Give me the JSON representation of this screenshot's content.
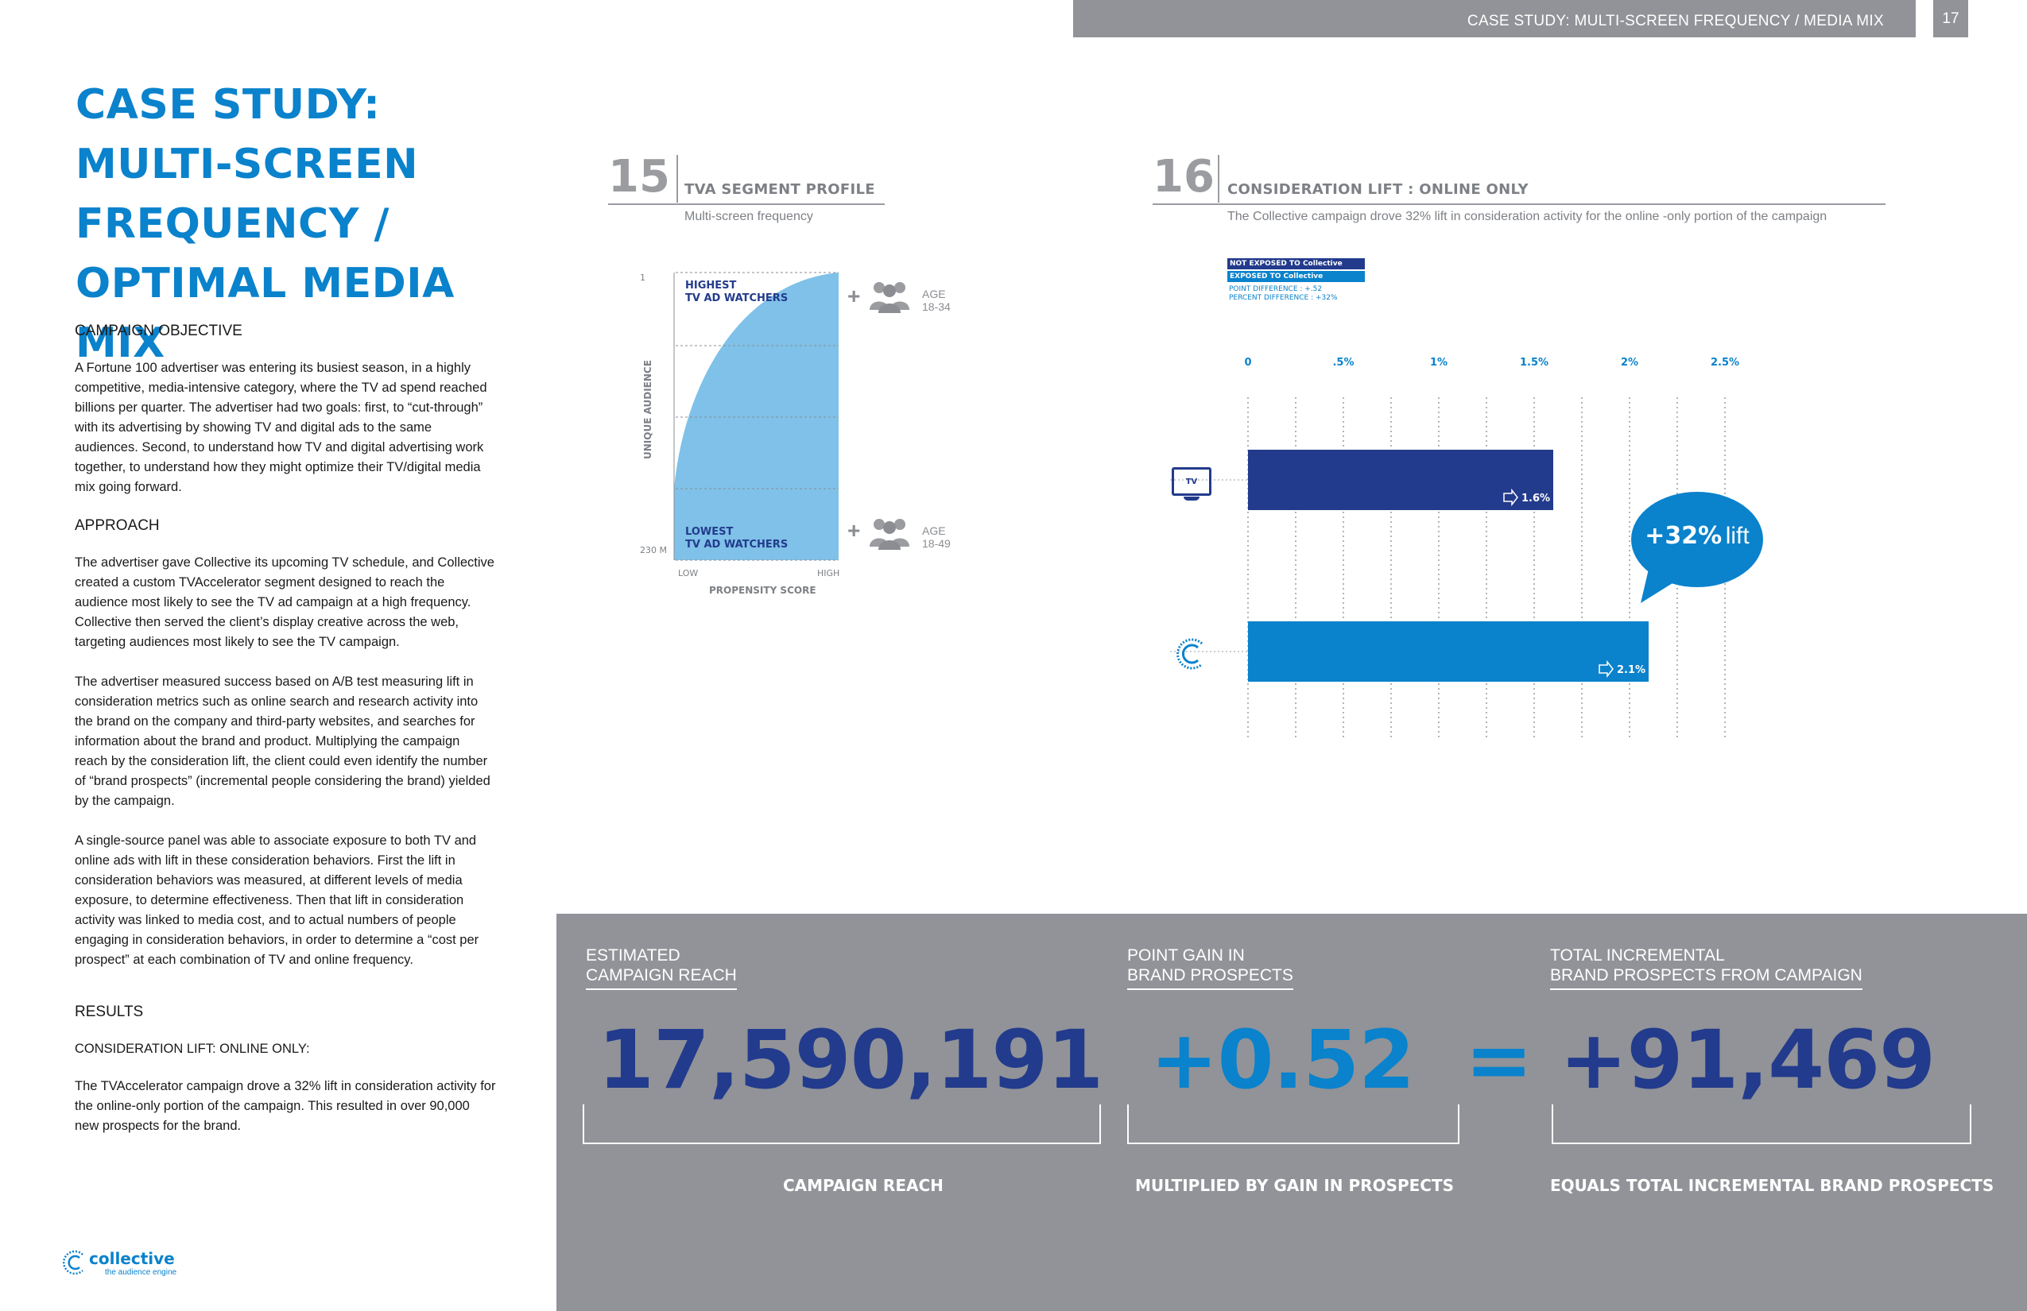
{
  "header": {
    "title": "CASE STUDY: MULTI-SCREEN FREQUENCY / MEDIA MIX",
    "page_number": "17"
  },
  "main_title": {
    "line1": "CASE STUDY:",
    "line2": "MULTI-SCREEN",
    "line3": "FREQUENCY /",
    "line4": "OPTIMAL MEDIA MIX"
  },
  "body": {
    "objective_heading": "CAMPAIGN OBJECTIVE",
    "objective_text": "A Fortune 100 advertiser was entering its busiest season, in a highly competitive, media-intensive category, where the TV ad spend reached billions per quarter. The advertiser had two goals: first, to “cut-through” with its advertising by showing TV and digital ads to the same audiences. Second, to understand how TV and digital advertising work together, to understand how they might optimize their TV/digital media mix going forward.",
    "approach_heading": "APPROACH",
    "approach_p1": "The advertiser gave Collective its upcoming TV schedule, and Collective created a custom TVAccelerator segment designed to reach the audience most likely to see the TV ad campaign at a high frequency. Collective then served the client’s display creative across the web, targeting audiences most likely to see the TV campaign.",
    "approach_p2": "The advertiser measured success based on A/B test measuring lift in consideration metrics such as online search and research activity into the brand on the company and third-party websites, and searches for information about the brand and product. Multiplying the campaign reach by the consideration lift, the client could even identify the number of “brand prospects” (incremental people considering the brand) yielded by the campaign.",
    "approach_p3": "A single-source panel was able to associate exposure to both TV and online ads with lift in these consideration behaviors. First the lift in consideration behaviors was measured, at different levels of media exposure, to determine effectiveness. Then that lift in consideration activity was linked to media cost, and to actual numbers of people engaging in consideration behaviors, in order to determine a “cost per prospect” at each combination of TV and online frequency.",
    "results_heading": "RESULTS",
    "results_subheading": "CONSIDERATION LIFT: ONLINE ONLY:",
    "results_text": "The TVAccelerator campaign drove a 32% lift in consideration activity for the online-only portion of the campaign.  This resulted in over 90,000 new prospects for the brand."
  },
  "chart15": {
    "number": "15",
    "title": "TVA SEGMENT PROFILE",
    "subtitle": "Multi-screen frequency",
    "y_axis_label": "UNIQUE AUDIENCE",
    "y_top": "1",
    "y_bottom": "230 M",
    "x_axis_label": "PROPENSITY SCORE",
    "x_low": "LOW",
    "x_high": "HIGH",
    "top_label_line1": "HIGHEST",
    "top_label_line2": "TV AD WATCHERS",
    "bottom_label_line1": "LOWEST",
    "bottom_label_line2": "TV AD WATCHERS",
    "age_top_line1": "AGE",
    "age_top_line2": "18-34",
    "age_bottom_line1": "AGE",
    "age_bottom_line2": "18-49",
    "fill_color": "#7fc1e8",
    "plus": "+"
  },
  "chart16": {
    "number": "16",
    "title": "CONSIDERATION LIFT : ONLINE ONLY",
    "subtitle": "The Collective campaign drove 32% lift in consideration activity for the online -only portion of the campaign",
    "legend": {
      "not_exposed": "NOT EXPOSED TO Collective",
      "exposed": "EXPOSED TO Collective",
      "point_diff": "POINT DIFFERENCE : +.52",
      "percent_diff": "PERCENT DIFFERENCE : +32%"
    },
    "tv_icon_label": "TV",
    "callout_value": "+32%",
    "callout_word": "lift",
    "colors": {
      "not_exposed": "#233b8c",
      "exposed": "#0a82cc"
    }
  },
  "chart_data": {
    "type": "bar",
    "orientation": "horizontal",
    "categories": [
      "TV",
      "Collective"
    ],
    "values": [
      1.6,
      2.1
    ],
    "value_labels": [
      "1.6%",
      "2.1%"
    ],
    "x_ticks": [
      "0",
      ".5%",
      "1%",
      "1.5%",
      "2%",
      "2.5%"
    ],
    "xlim": [
      0,
      2.5
    ]
  },
  "stats": {
    "reach_label_line1": "ESTIMATED",
    "reach_label_line2": "CAMPAIGN REACH",
    "reach_value": "17,590,191",
    "reach_footer": "CAMPAIGN REACH",
    "gain_label_line1": "POINT GAIN IN",
    "gain_label_line2": "BRAND PROSPECTS",
    "gain_value": "+0.52",
    "gain_footer": "MULTIPLIED BY GAIN IN PROSPECTS",
    "equals": "=",
    "total_label_line1": "TOTAL INCREMENTAL",
    "total_label_line2": "BRAND PROSPECTS FROM CAMPAIGN",
    "total_value": "+91,469",
    "total_footer": "EQUALS TOTAL INCREMENTAL BRAND PROSPECTS",
    "colors": {
      "dark_blue": "#233b8c",
      "light_blue": "#0a82cc"
    }
  },
  "logo": {
    "name": "collective",
    "tagline": "the audience engine"
  }
}
